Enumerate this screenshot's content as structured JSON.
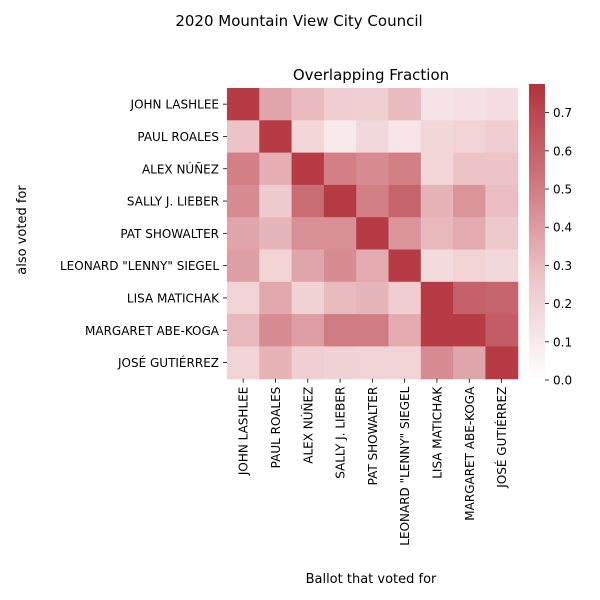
{
  "chart_data": {
    "type": "heatmap",
    "suptitle": "2020 Mountain View City Council",
    "title": "Overlapping Fraction",
    "xlabel": "Ballot that voted for",
    "ylabel": "also voted for",
    "x_categories": [
      "JOHN LASHLEE",
      "PAUL ROALES",
      "ALEX NÚÑEZ",
      "SALLY J. LIEBER",
      "PAT SHOWALTER",
      "LEONARD \"LENNY\" SIEGEL",
      "LISA MATICHAK",
      "MARGARET ABE-KOGA",
      "JOSÉ GUTIÉRREZ"
    ],
    "y_categories": [
      "JOHN LASHLEE",
      "PAUL ROALES",
      "ALEX NÚÑEZ",
      "SALLY J. LIEBER",
      "PAT SHOWALTER",
      "LEONARD \"LENNY\" SIEGEL",
      "LISA MATICHAK",
      "MARGARET ABE-KOGA",
      "JOSÉ GUTIÉRREZ"
    ],
    "values": [
      [
        0.74,
        0.37,
        0.3,
        0.23,
        0.22,
        0.3,
        0.13,
        0.14,
        0.15
      ],
      [
        0.27,
        0.74,
        0.19,
        0.1,
        0.18,
        0.12,
        0.19,
        0.2,
        0.23
      ],
      [
        0.49,
        0.34,
        0.74,
        0.49,
        0.45,
        0.49,
        0.19,
        0.27,
        0.27
      ],
      [
        0.45,
        0.24,
        0.56,
        0.74,
        0.49,
        0.59,
        0.33,
        0.42,
        0.29
      ],
      [
        0.37,
        0.32,
        0.44,
        0.44,
        0.74,
        0.42,
        0.31,
        0.35,
        0.25
      ],
      [
        0.39,
        0.2,
        0.37,
        0.45,
        0.35,
        0.74,
        0.17,
        0.2,
        0.18
      ],
      [
        0.2,
        0.36,
        0.21,
        0.3,
        0.32,
        0.23,
        0.74,
        0.6,
        0.59
      ],
      [
        0.31,
        0.45,
        0.39,
        0.5,
        0.5,
        0.35,
        0.74,
        0.74,
        0.62
      ],
      [
        0.2,
        0.33,
        0.22,
        0.21,
        0.2,
        0.2,
        0.45,
        0.37,
        0.74
      ]
    ],
    "colorbar": {
      "range": [
        0.0,
        0.775
      ],
      "ticks": [
        "0.0",
        "0.1",
        "0.2",
        "0.3",
        "0.4",
        "0.5",
        "0.6",
        "0.7"
      ],
      "colormap": "vlag_reds",
      "color_low": "#ffffff",
      "color_high": "#b2323b"
    },
    "grid": false,
    "legend": "colorbar-right"
  }
}
